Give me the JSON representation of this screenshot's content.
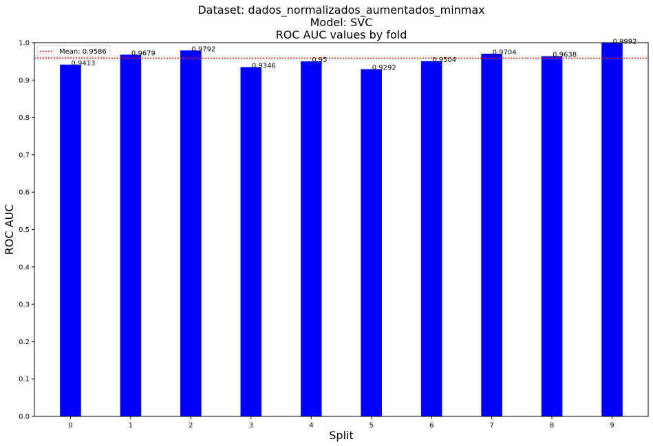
{
  "chart_data": {
    "type": "bar",
    "title": "Dataset: dados_normalizados_aumentados_minmax",
    "subtitle_model": "Model: SVC",
    "subtitle_metric": "ROC AUC values by fold",
    "xlabel": "Split",
    "ylabel": "ROC AUC",
    "categories": [
      "0",
      "1",
      "2",
      "3",
      "4",
      "5",
      "6",
      "7",
      "8",
      "9"
    ],
    "values": [
      0.9413,
      0.9679,
      0.9792,
      0.9346,
      0.95,
      0.9292,
      0.9504,
      0.9704,
      0.9638,
      0.9992
    ],
    "value_labels": [
      "0.9413",
      "0.9679",
      "0.9792",
      "0.9346",
      "0.95",
      "0.9292",
      "0.9504",
      "0.9704",
      "0.9638",
      "0.9992"
    ],
    "ylim": [
      0,
      1.0
    ],
    "yticks": [
      "0.0",
      "0.1",
      "0.2",
      "0.3",
      "0.4",
      "0.5",
      "0.6",
      "0.7",
      "0.8",
      "0.9",
      "1.0"
    ],
    "bar_color": "#0000ff",
    "mean": {
      "value": 0.9586,
      "label": "Mean: 0.9586",
      "color": "#ff0000",
      "style": "dotted"
    },
    "legend_position": "top-left",
    "grid": false
  }
}
